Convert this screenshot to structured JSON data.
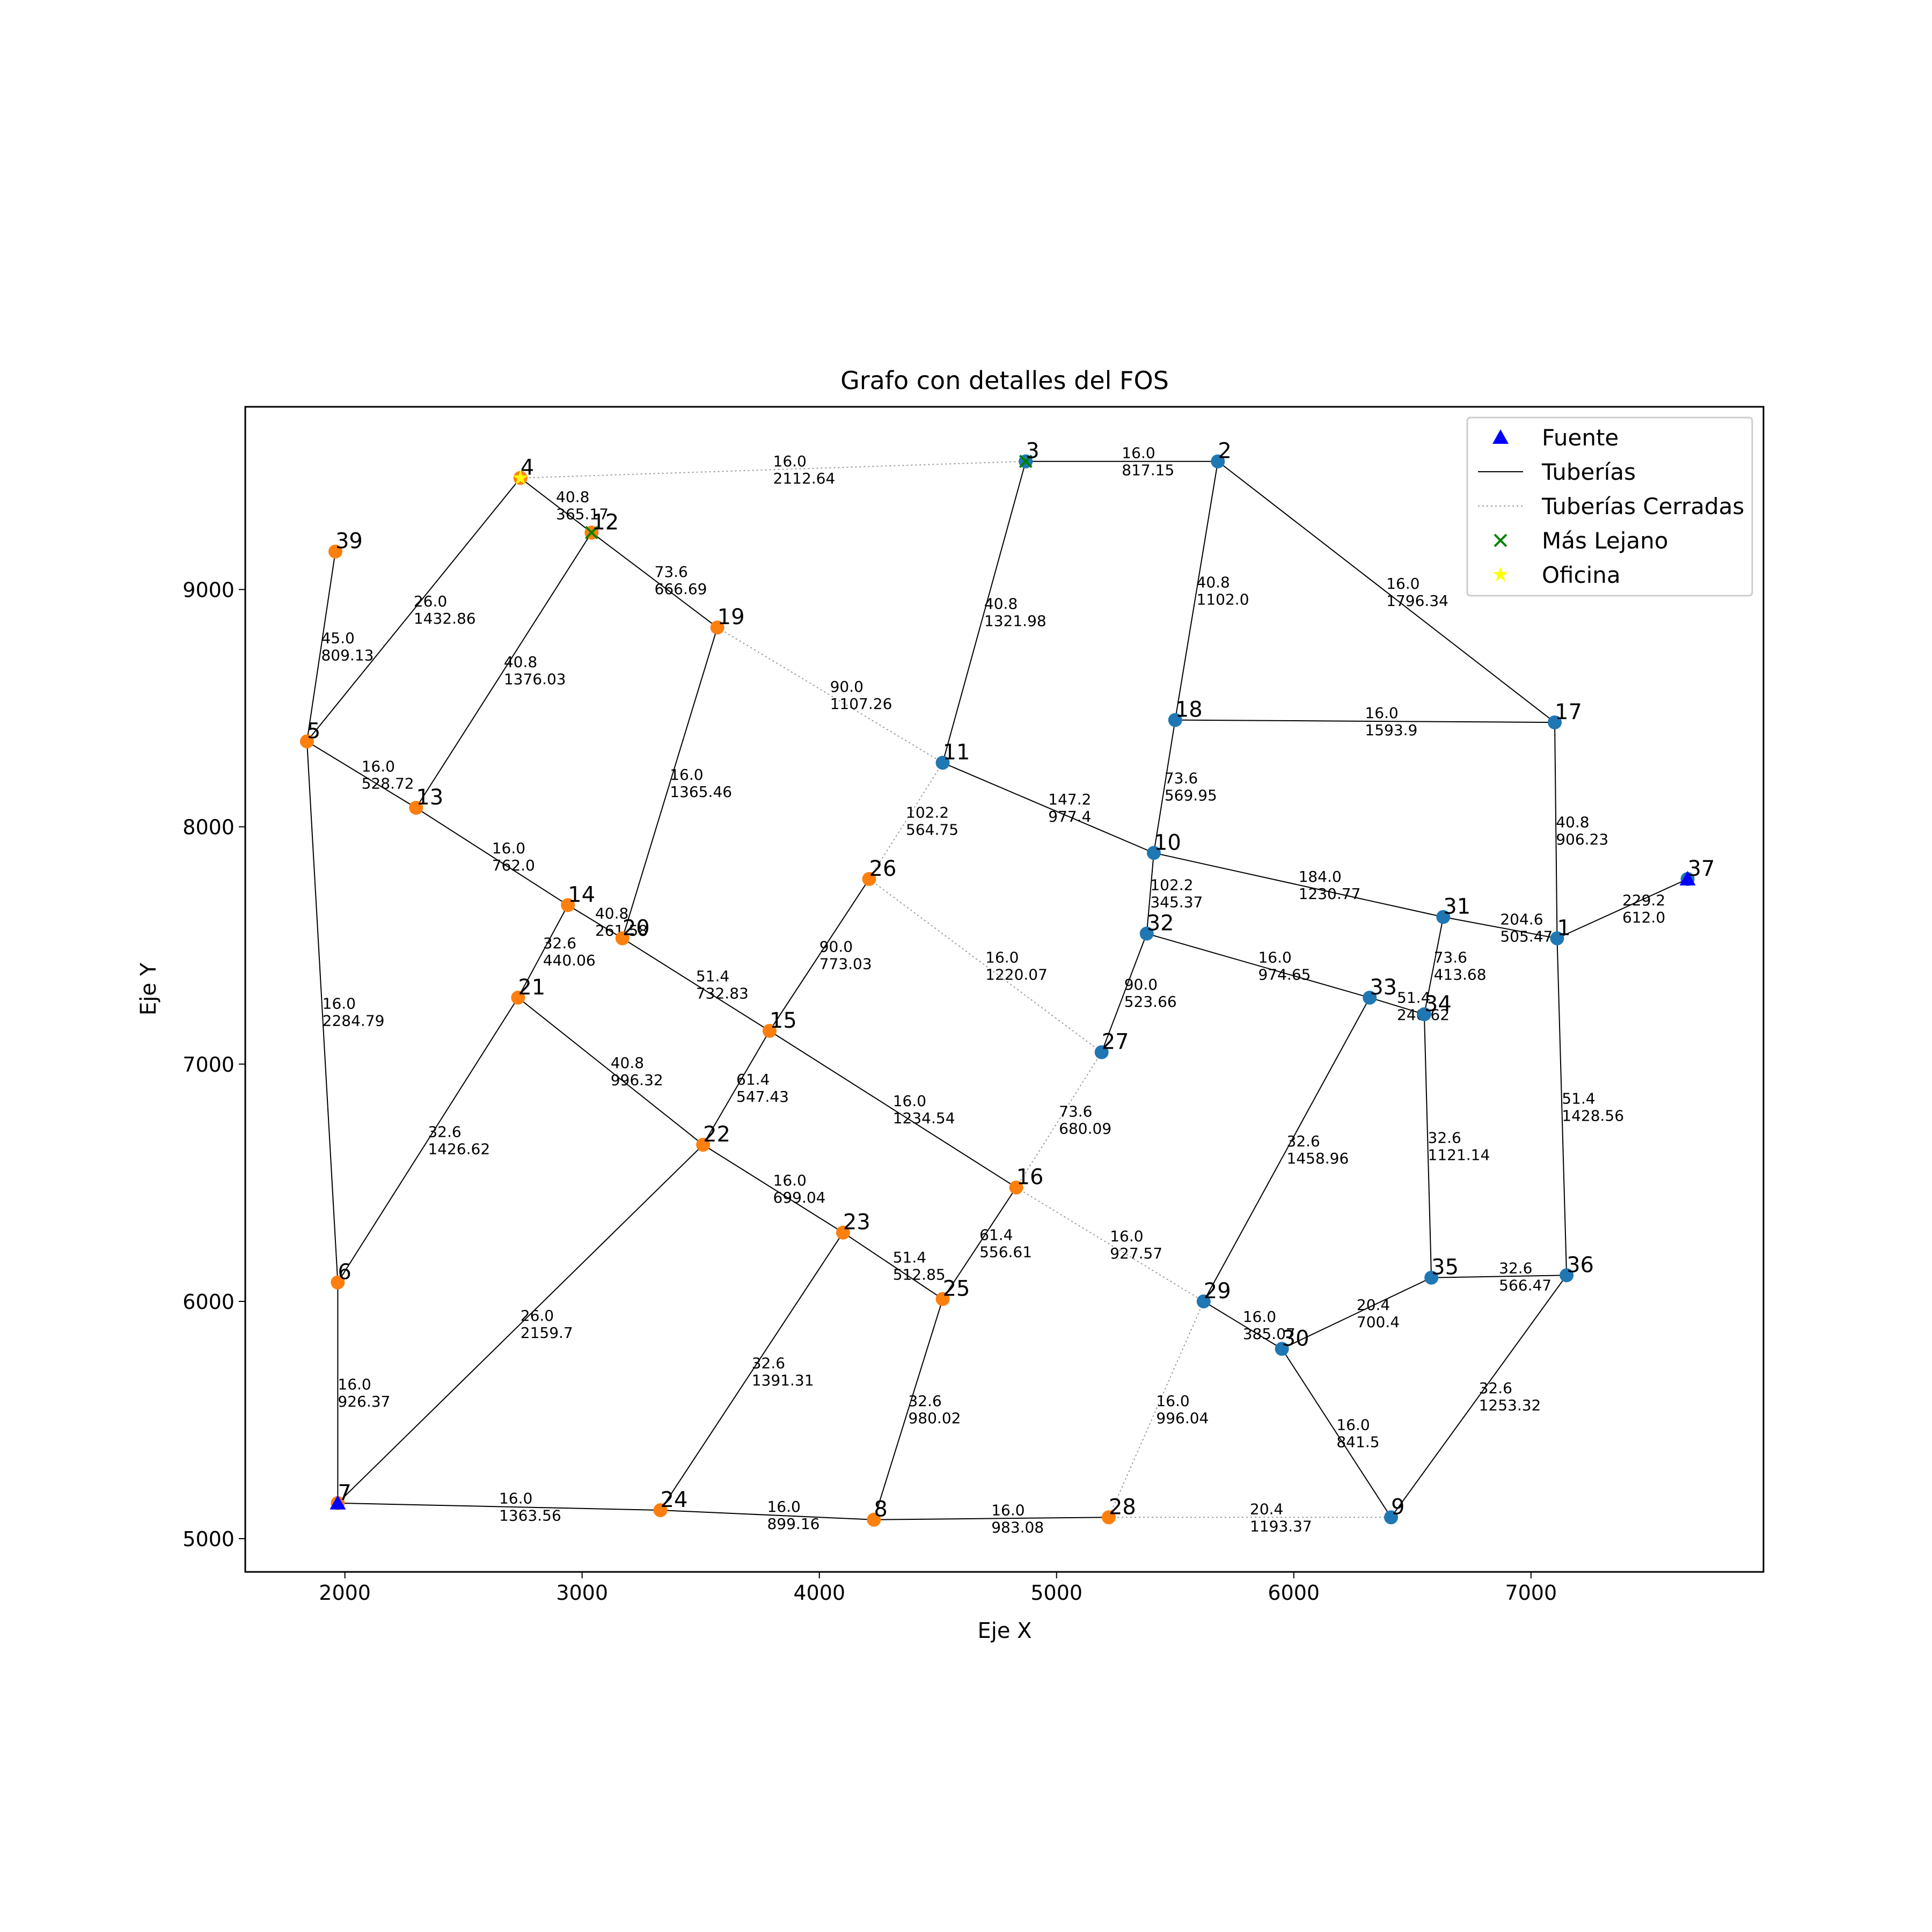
{
  "chart_data": {
    "type": "scatter",
    "title": "Grafo con detalles del FOS",
    "xlabel": "Eje X",
    "ylabel": "Eje Y",
    "xlim": [
      1580,
      7980
    ],
    "ylim": [
      4860,
      9770
    ],
    "xticks": [
      2000,
      3000,
      4000,
      5000,
      6000,
      7000
    ],
    "yticks": [
      5000,
      6000,
      7000,
      8000,
      9000
    ],
    "legend": {
      "position": "top-right",
      "entries": [
        {
          "label": "Fuente",
          "marker": "triangle",
          "color": "#0000ff"
        },
        {
          "label": "Tuberías",
          "marker": "line",
          "color": "#000000"
        },
        {
          "label": "Tuberías Cerradas",
          "marker": "dotted-line",
          "color": "#999999"
        },
        {
          "label": "Más Lejano",
          "marker": "x",
          "color": "#008000"
        },
        {
          "label": "Oficina",
          "marker": "star",
          "color": "#ffff00"
        }
      ]
    },
    "colors": {
      "blue_node": "#1f77b4",
      "orange_node": "#ff7f0e",
      "source": "#0000ff",
      "farthest": "#008000",
      "office": "#ffff00"
    },
    "nodes": [
      {
        "id": "1",
        "x": 7110,
        "y": 7530,
        "group": "blue"
      },
      {
        "id": "2",
        "x": 5680,
        "y": 9540,
        "group": "blue"
      },
      {
        "id": "3",
        "x": 4870,
        "y": 9540,
        "group": "blue",
        "farthest": true
      },
      {
        "id": "4",
        "x": 2740,
        "y": 9470,
        "group": "orange",
        "office": true
      },
      {
        "id": "5",
        "x": 1840,
        "y": 8360,
        "group": "orange"
      },
      {
        "id": "6",
        "x": 1970,
        "y": 6080,
        "group": "orange"
      },
      {
        "id": "7",
        "x": 1970,
        "y": 5150,
        "group": "orange",
        "source": true
      },
      {
        "id": "8",
        "x": 4230,
        "y": 5080,
        "group": "orange"
      },
      {
        "id": "9",
        "x": 6410,
        "y": 5090,
        "group": "blue"
      },
      {
        "id": "10",
        "x": 5410,
        "y": 7890,
        "group": "blue"
      },
      {
        "id": "11",
        "x": 4520,
        "y": 8270,
        "group": "blue"
      },
      {
        "id": "12",
        "x": 3040,
        "y": 9240,
        "group": "orange",
        "farthest": true
      },
      {
        "id": "13",
        "x": 2300,
        "y": 8080,
        "group": "orange"
      },
      {
        "id": "14",
        "x": 2940,
        "y": 7670,
        "group": "orange"
      },
      {
        "id": "15",
        "x": 3790,
        "y": 7140,
        "group": "orange"
      },
      {
        "id": "16",
        "x": 4830,
        "y": 6480,
        "group": "orange"
      },
      {
        "id": "17",
        "x": 7100,
        "y": 8440,
        "group": "blue"
      },
      {
        "id": "18",
        "x": 5500,
        "y": 8450,
        "group": "blue"
      },
      {
        "id": "19",
        "x": 3570,
        "y": 8840,
        "group": "orange"
      },
      {
        "id": "20",
        "x": 3170,
        "y": 7530,
        "group": "orange"
      },
      {
        "id": "21",
        "x": 2730,
        "y": 7280,
        "group": "orange"
      },
      {
        "id": "22",
        "x": 3510,
        "y": 6660,
        "group": "orange"
      },
      {
        "id": "23",
        "x": 4100,
        "y": 6290,
        "group": "orange"
      },
      {
        "id": "24",
        "x": 3330,
        "y": 5120,
        "group": "orange"
      },
      {
        "id": "25",
        "x": 4520,
        "y": 6010,
        "group": "orange"
      },
      {
        "id": "26",
        "x": 4210,
        "y": 7780,
        "group": "orange"
      },
      {
        "id": "27",
        "x": 5190,
        "y": 7050,
        "group": "blue"
      },
      {
        "id": "28",
        "x": 5220,
        "y": 5090,
        "group": "orange"
      },
      {
        "id": "29",
        "x": 5620,
        "y": 6000,
        "group": "blue"
      },
      {
        "id": "30",
        "x": 5950,
        "y": 5800,
        "group": "blue"
      },
      {
        "id": "31",
        "x": 6630,
        "y": 7620,
        "group": "blue"
      },
      {
        "id": "32",
        "x": 5380,
        "y": 7550,
        "group": "blue"
      },
      {
        "id": "33",
        "x": 6320,
        "y": 7280,
        "group": "blue"
      },
      {
        "id": "34",
        "x": 6550,
        "y": 7210,
        "group": "blue"
      },
      {
        "id": "35",
        "x": 6580,
        "y": 6100,
        "group": "blue"
      },
      {
        "id": "36",
        "x": 7150,
        "y": 6110,
        "group": "blue"
      },
      {
        "id": "37",
        "x": 7660,
        "y": 7780,
        "group": "blue",
        "source": true
      },
      {
        "id": "39",
        "x": 1960,
        "y": 9160,
        "group": "orange"
      }
    ],
    "edges": [
      {
        "from": "4",
        "to": "3",
        "diameter": "16.0",
        "length": "2112.64",
        "closed": true
      },
      {
        "from": "3",
        "to": "2",
        "diameter": "16.0",
        "length": "817.15",
        "closed": false
      },
      {
        "from": "4",
        "to": "12",
        "diameter": "40.8",
        "length": "365.17",
        "closed": false
      },
      {
        "from": "12",
        "to": "19",
        "diameter": "73.6",
        "length": "666.69",
        "closed": false
      },
      {
        "from": "3",
        "to": "11",
        "diameter": "40.8",
        "length": "1321.98",
        "closed": false
      },
      {
        "from": "2",
        "to": "18",
        "diameter": "40.8",
        "length": "1102.0",
        "closed": false
      },
      {
        "from": "2",
        "to": "17",
        "diameter": "16.0",
        "length": "1796.34",
        "closed": false
      },
      {
        "from": "39",
        "to": "5",
        "diameter": "45.0",
        "length": "809.13",
        "closed": false
      },
      {
        "from": "4",
        "to": "5",
        "diameter": "26.0",
        "length": "1432.86",
        "closed": false
      },
      {
        "from": "12",
        "to": "13",
        "diameter": "40.8",
        "length": "1376.03",
        "closed": false
      },
      {
        "from": "19",
        "to": "11",
        "diameter": "90.0",
        "length": "1107.26",
        "closed": true
      },
      {
        "from": "18",
        "to": "17",
        "diameter": "16.0",
        "length": "1593.9",
        "closed": false
      },
      {
        "from": "5",
        "to": "13",
        "diameter": "16.0",
        "length": "528.72",
        "closed": false
      },
      {
        "from": "19",
        "to": "20",
        "diameter": "16.0",
        "length": "1365.46",
        "closed": false
      },
      {
        "from": "18",
        "to": "10",
        "diameter": "73.6",
        "length": "569.95",
        "closed": false
      },
      {
        "from": "11",
        "to": "10",
        "diameter": "147.2",
        "length": "977.4",
        "closed": false
      },
      {
        "from": "11",
        "to": "26",
        "diameter": "102.2",
        "length": "564.75",
        "closed": true
      },
      {
        "from": "17",
        "to": "1",
        "diameter": "40.8",
        "length": "906.23",
        "closed": false
      },
      {
        "from": "13",
        "to": "14",
        "diameter": "16.0",
        "length": "762.0",
        "closed": false
      },
      {
        "from": "10",
        "to": "31",
        "diameter": "184.0",
        "length": "1230.77",
        "closed": false
      },
      {
        "from": "37",
        "to": "1",
        "diameter": "229.2",
        "length": "612.0",
        "closed": false
      },
      {
        "from": "31",
        "to": "1",
        "diameter": "204.6",
        "length": "505.47",
        "closed": false
      },
      {
        "from": "10",
        "to": "32",
        "diameter": "102.2",
        "length": "345.37",
        "closed": false
      },
      {
        "from": "14",
        "to": "20",
        "diameter": "40.8",
        "length": "261.58",
        "closed": false
      },
      {
        "from": "14",
        "to": "21",
        "diameter": "32.6",
        "length": "440.06",
        "closed": false
      },
      {
        "from": "26",
        "to": "15",
        "diameter": "90.0",
        "length": "773.03",
        "closed": false
      },
      {
        "from": "26",
        "to": "27",
        "diameter": "16.0",
        "length": "1220.07",
        "closed": true
      },
      {
        "from": "31",
        "to": "34",
        "diameter": "73.6",
        "length": "413.68",
        "closed": false
      },
      {
        "from": "32",
        "to": "33",
        "diameter": "16.0",
        "length": "974.65",
        "closed": false
      },
      {
        "from": "32",
        "to": "27",
        "diameter": "90.0",
        "length": "523.66",
        "closed": false
      },
      {
        "from": "20",
        "to": "15",
        "diameter": "51.4",
        "length": "732.83",
        "closed": false
      },
      {
        "from": "33",
        "to": "34",
        "diameter": "51.4",
        "length": "240.62",
        "closed": false
      },
      {
        "from": "21",
        "to": "22",
        "diameter": "40.8",
        "length": "996.32",
        "closed": false
      },
      {
        "from": "15",
        "to": "22",
        "diameter": "61.4",
        "length": "547.43",
        "closed": false
      },
      {
        "from": "15",
        "to": "16",
        "diameter": "16.0",
        "length": "1234.54",
        "closed": false
      },
      {
        "from": "27",
        "to": "16",
        "diameter": "73.6",
        "length": "680.09",
        "closed": true
      },
      {
        "from": "1",
        "to": "36",
        "diameter": "51.4",
        "length": "1428.56",
        "closed": false
      },
      {
        "from": "33",
        "to": "29",
        "diameter": "32.6",
        "length": "1458.96",
        "closed": false
      },
      {
        "from": "34",
        "to": "35",
        "diameter": "32.6",
        "length": "1121.14",
        "closed": false
      },
      {
        "from": "21",
        "to": "6",
        "diameter": "32.6",
        "length": "1426.62",
        "closed": false
      },
      {
        "from": "22",
        "to": "23",
        "diameter": "16.0",
        "length": "699.04",
        "closed": false
      },
      {
        "from": "16",
        "to": "29",
        "diameter": "16.0",
        "length": "927.57",
        "closed": true
      },
      {
        "from": "16",
        "to": "25",
        "diameter": "61.4",
        "length": "556.61",
        "closed": false
      },
      {
        "from": "23",
        "to": "25",
        "diameter": "51.4",
        "length": "512.85",
        "closed": false
      },
      {
        "from": "35",
        "to": "36",
        "diameter": "32.6",
        "length": "566.47",
        "closed": false
      },
      {
        "from": "22",
        "to": "7",
        "diameter": "26.0",
        "length": "2159.7",
        "closed": false
      },
      {
        "from": "29",
        "to": "30",
        "diameter": "16.0",
        "length": "385.07",
        "closed": false
      },
      {
        "from": "30",
        "to": "35",
        "diameter": "20.4",
        "length": "700.4",
        "closed": false
      },
      {
        "from": "23",
        "to": "24",
        "diameter": "32.6",
        "length": "1391.31",
        "closed": false
      },
      {
        "from": "25",
        "to": "8",
        "diameter": "32.6",
        "length": "980.02",
        "closed": false
      },
      {
        "from": "6",
        "to": "7",
        "diameter": "16.0",
        "length": "926.37",
        "closed": false
      },
      {
        "from": "5",
        "to": "6",
        "diameter": "16.0",
        "length": "2284.79",
        "closed": false
      },
      {
        "from": "29",
        "to": "28",
        "diameter": "16.0",
        "length": "996.04",
        "closed": true
      },
      {
        "from": "30",
        "to": "9",
        "diameter": "16.0",
        "length": "841.5",
        "closed": false
      },
      {
        "from": "9",
        "to": "36",
        "diameter": "32.6",
        "length": "1253.32",
        "closed": false
      },
      {
        "from": "7",
        "to": "24",
        "diameter": "16.0",
        "length": "1363.56",
        "closed": false
      },
      {
        "from": "24",
        "to": "8",
        "diameter": "16.0",
        "length": "899.16",
        "closed": false
      },
      {
        "from": "8",
        "to": "28",
        "diameter": "16.0",
        "length": "983.08",
        "closed": false
      },
      {
        "from": "28",
        "to": "9",
        "diameter": "20.4",
        "length": "1193.37",
        "closed": true
      }
    ]
  }
}
